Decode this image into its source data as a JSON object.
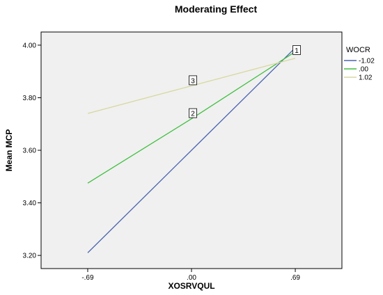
{
  "chart_data": {
    "type": "line",
    "title": "Moderating Effect",
    "xlabel": "XOSRVQUL",
    "ylabel": "Mean MCP",
    "categories": [
      "-.69",
      ".00",
      ".69"
    ],
    "x": [
      -0.69,
      0.0,
      0.69
    ],
    "ylim": [
      3.15,
      4.05
    ],
    "yticks": [
      3.2,
      3.4,
      3.6,
      3.8,
      4.0
    ],
    "ytick_labels": [
      "3.20",
      "3.40",
      "3.60",
      "3.80",
      "4.00"
    ],
    "grid": false,
    "legend": {
      "title": "WOCR",
      "position": "right"
    },
    "series": [
      {
        "name": "-1.02",
        "color": "#4a64b0",
        "values": [
          3.21,
          3.6,
          3.99
        ]
      },
      {
        "name": ".00",
        "color": "#3fbf3f",
        "values": [
          3.475,
          3.72,
          3.975
        ]
      },
      {
        "name": "1.02",
        "color": "#d8d8a0",
        "values": [
          3.74,
          3.845,
          3.95
        ]
      }
    ],
    "annotations": [
      {
        "text": "1",
        "x": 0.69,
        "y": 3.98
      },
      {
        "text": "2",
        "x": 0.0,
        "y": 3.74
      },
      {
        "text": "3",
        "x": 0.0,
        "y": 3.865
      }
    ]
  },
  "colors": {
    "plot_background": "#f0f0f0"
  }
}
